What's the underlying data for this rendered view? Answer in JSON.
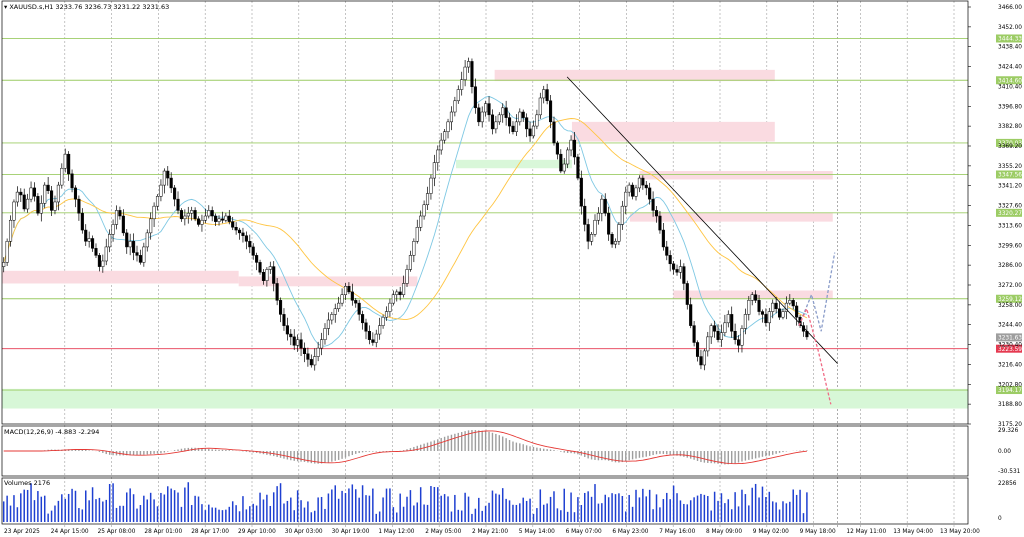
{
  "chart_data": {
    "type": "candlestick",
    "symbol_header": "XAUUSD.s,H1",
    "ohlc_header": "3233.76 3236.73 3231.22 3231.63",
    "y_ticks": [
      "3466.00",
      "3452.00",
      "3438.40",
      "3424.40",
      "3410.40",
      "3396.80",
      "3382.80",
      "3369.20",
      "3355.20",
      "3341.20",
      "3327.60",
      "3313.60",
      "3299.60",
      "3286.00",
      "3272.00",
      "3258.00",
      "3244.40",
      "3230.40",
      "3216.40",
      "3202.80",
      "3188.80",
      "3175.20"
    ],
    "x_ticks": [
      "23 Apr 2025",
      "24 Apr 15:00",
      "25 Apr 08:00",
      "28 Apr 01:00",
      "28 Apr 17:00",
      "29 Apr 10:00",
      "30 Apr 03:00",
      "30 Apr 19:00",
      "1 May 12:00",
      "2 May 05:00",
      "2 May 21:00",
      "5 May 14:00",
      "6 May 07:00",
      "6 May 23:00",
      "7 May 16:00",
      "8 May 09:00",
      "9 May 02:00",
      "9 May 18:00",
      "12 May 11:00",
      "13 May 04:00",
      "13 May 20:00"
    ],
    "levels": [
      {
        "price": 3444.33,
        "label": "3444.33",
        "color": "#9ccc65"
      },
      {
        "price": 3414.6,
        "label": "3414.60",
        "color": "#9ccc65"
      },
      {
        "price": 3370.03,
        "label": "3370.03",
        "color": "#9ccc65"
      },
      {
        "price": 3347.56,
        "label": "3347.56",
        "color": "#9ccc65"
      },
      {
        "price": 3320.27,
        "label": "3320.27",
        "color": "#9ccc65"
      },
      {
        "price": 3259.12,
        "label": "3259.12",
        "color": "#9ccc65"
      },
      {
        "price": 3223.59,
        "label": "3223.59",
        "color": "#e53950"
      },
      {
        "price": 3194.17,
        "label": "3194.17",
        "color": "#9ccc65"
      }
    ],
    "current_price": "3231.63",
    "zones": [
      {
        "x0": 0.0,
        "x1": 0.245,
        "y0": 3279,
        "y1": 3270,
        "color": "#fadbe1"
      },
      {
        "x0": 0.245,
        "x1": 0.43,
        "y0": 3275,
        "y1": 3268,
        "color": "#fadbe1"
      },
      {
        "x0": 0.51,
        "x1": 0.8,
        "y0": 3422,
        "y1": 3414,
        "color": "#fadbe1"
      },
      {
        "x0": 0.59,
        "x1": 0.8,
        "y0": 3385,
        "y1": 3371,
        "color": "#fadbe1"
      },
      {
        "x0": 0.47,
        "x1": 0.59,
        "y0": 3358,
        "y1": 3352,
        "color": "#d9f7d9"
      },
      {
        "x0": 0.66,
        "x1": 0.86,
        "y0": 3350,
        "y1": 3344,
        "color": "#fadbe1"
      },
      {
        "x0": 0.65,
        "x1": 0.86,
        "y0": 3320,
        "y1": 3314,
        "color": "#fadbe1"
      },
      {
        "x0": 0.695,
        "x1": 0.86,
        "y0": 3265,
        "y1": 3259,
        "color": "#fadbe1"
      },
      {
        "x0": 0.0,
        "x1": 1.0,
        "y0": 3195,
        "y1": 3181,
        "color": "#d7f7d7"
      }
    ],
    "trendline": {
      "x0": 0.585,
      "p0": 3417,
      "x1": 0.865,
      "p1": 3213
    },
    "forecast_up": [
      [
        0.825,
        3240
      ],
      [
        0.838,
        3262
      ],
      [
        0.848,
        3236
      ],
      [
        0.862,
        3292
      ]
    ],
    "forecast_down": [
      [
        0.825,
        3240
      ],
      [
        0.833,
        3252
      ],
      [
        0.845,
        3222
      ],
      [
        0.858,
        3184
      ]
    ],
    "macd_header": "MACD(12,26,9) -4.883 -2.294",
    "macd_ticks": [
      "29.326",
      "0.00",
      "-30.531"
    ],
    "volume_header": "Volumes 2176",
    "volume_ticks": [
      "22856",
      "0"
    ],
    "closes": [
      3285,
      3300,
      3315,
      3328,
      3335,
      3333,
      3323,
      3330,
      3338,
      3332,
      3320,
      3327,
      3340,
      3336,
      3322,
      3328,
      3340,
      3352,
      3362,
      3348,
      3338,
      3330,
      3320,
      3308,
      3300,
      3302,
      3295,
      3290,
      3282,
      3286,
      3296,
      3305,
      3312,
      3322,
      3318,
      3306,
      3296,
      3300,
      3292,
      3290,
      3285,
      3296,
      3306,
      3316,
      3325,
      3332,
      3340,
      3350,
      3345,
      3338,
      3330,
      3322,
      3316,
      3318,
      3320,
      3322,
      3316,
      3312,
      3315,
      3318,
      3322,
      3318,
      3314,
      3316,
      3315,
      3318,
      3314,
      3310,
      3308,
      3306,
      3304,
      3300,
      3296,
      3290,
      3285,
      3278,
      3272,
      3280,
      3282,
      3270,
      3258,
      3248,
      3240,
      3234,
      3232,
      3226,
      3230,
      3224,
      3220,
      3216,
      3212,
      3218,
      3224,
      3230,
      3238,
      3244,
      3248,
      3252,
      3256,
      3262,
      3268,
      3264,
      3258,
      3256,
      3248,
      3242,
      3236,
      3230,
      3228,
      3234,
      3240,
      3246,
      3250,
      3256,
      3262,
      3264,
      3262,
      3270,
      3280,
      3290,
      3300,
      3310,
      3318,
      3326,
      3334,
      3345,
      3356,
      3365,
      3372,
      3378,
      3385,
      3392,
      3400,
      3408,
      3415,
      3424,
      3428,
      3410,
      3395,
      3385,
      3392,
      3398,
      3390,
      3380,
      3385,
      3390,
      3395,
      3388,
      3382,
      3378,
      3385,
      3392,
      3388,
      3380,
      3375,
      3382,
      3390,
      3402,
      3408,
      3400,
      3385,
      3370,
      3362,
      3350,
      3355,
      3365,
      3372,
      3360,
      3345,
      3325,
      3312,
      3300,
      3305,
      3315,
      3320,
      3330,
      3320,
      3305,
      3298,
      3300,
      3312,
      3325,
      3335,
      3340,
      3332,
      3338,
      3345,
      3340,
      3338,
      3330,
      3322,
      3318,
      3308,
      3296,
      3290,
      3284,
      3280,
      3278,
      3282,
      3270,
      3255,
      3240,
      3228,
      3218,
      3212,
      3222,
      3232,
      3240,
      3236,
      3230,
      3235,
      3242,
      3248,
      3236,
      3230,
      3226,
      3238,
      3248,
      3258,
      3262,
      3258,
      3250,
      3248,
      3242,
      3250,
      3256,
      3252,
      3246,
      3250,
      3256,
      3258,
      3254,
      3246,
      3240,
      3236,
      3232
    ]
  }
}
